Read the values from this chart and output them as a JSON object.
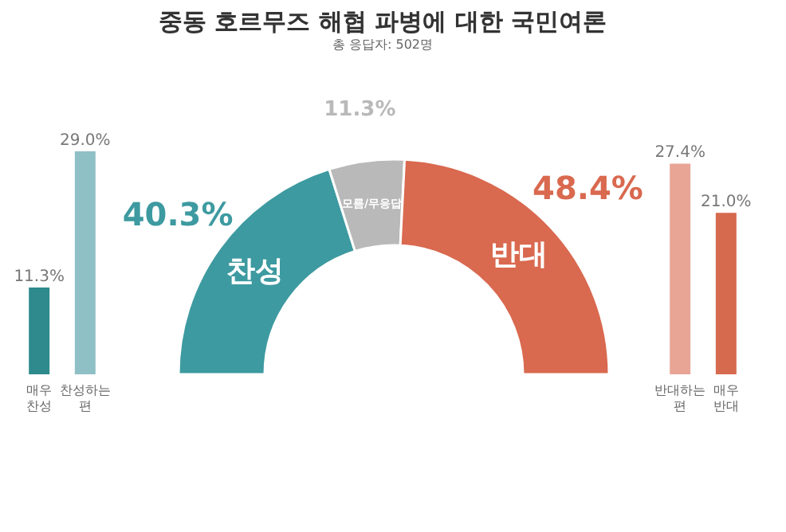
{
  "chart_data": [
    {
      "type": "bar",
      "categories": [
        "매우 찬성",
        "찬성하는 편"
      ],
      "values": [
        11.3,
        29.0
      ],
      "colors": [
        "#2e8a8c",
        "#8fc0c6"
      ],
      "value_labels": [
        "11.3%",
        "29.0%"
      ]
    },
    {
      "type": "donut",
      "title": "중동 호르무즈 해협 파병에 대한 국민여론",
      "subtitle": "총 응답자: 502명",
      "categories": [
        "찬성",
        "모름/무응답",
        "반대"
      ],
      "values": [
        40.3,
        11.3,
        48.4
      ],
      "colors": [
        "#3d9aa0",
        "#b9b9b9",
        "#d9694f"
      ],
      "value_labels": [
        "40.3%",
        "11.3%",
        "48.4%"
      ]
    },
    {
      "type": "bar",
      "categories": [
        "반대하는 편",
        "매우 반대"
      ],
      "values": [
        27.4,
        21.0
      ],
      "colors": [
        "#e8a595",
        "#d66a4e"
      ],
      "value_labels": [
        "27.4%",
        "21.0%"
      ]
    }
  ]
}
